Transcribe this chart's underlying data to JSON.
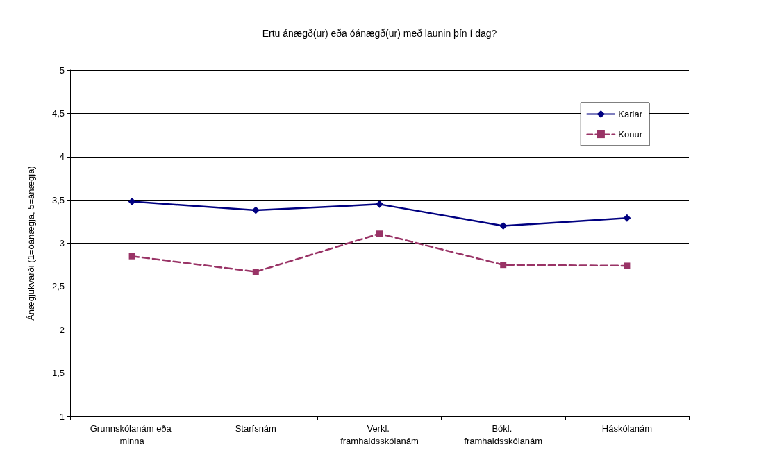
{
  "chart_data": {
    "type": "line",
    "title": "Ertu ánægð(ur) eða óánægð(ur) með launin þín í dag?",
    "ylabel": "Ánægjukvarði (1=óánægja, 5=ánægja)",
    "categories": [
      "Grunnskólanám eða minna",
      "Starfsnám",
      "Verkl. framhaldsskólanám",
      "Bókl. framhaldsskólanám",
      "Háskólanám"
    ],
    "series": [
      {
        "name": "Karlar",
        "color": "#000080",
        "marker": "diamond",
        "line_style": "solid",
        "values": [
          3.48,
          3.38,
          3.45,
          3.2,
          3.29
        ]
      },
      {
        "name": "Konur",
        "color": "#993366",
        "marker": "square",
        "line_style": "dashed",
        "values": [
          2.85,
          2.67,
          3.11,
          2.75,
          2.74
        ]
      }
    ],
    "ylim": [
      1,
      5
    ],
    "yticks": [
      1,
      {
        "value": 1.5,
        "label": "1,5"
      },
      2,
      {
        "value": 2.5,
        "label": "2,5"
      },
      3,
      {
        "value": 3.5,
        "label": "3,5"
      },
      4,
      {
        "value": 4.5,
        "label": "4,5"
      },
      5
    ],
    "grid": "y",
    "legend": "top right"
  }
}
